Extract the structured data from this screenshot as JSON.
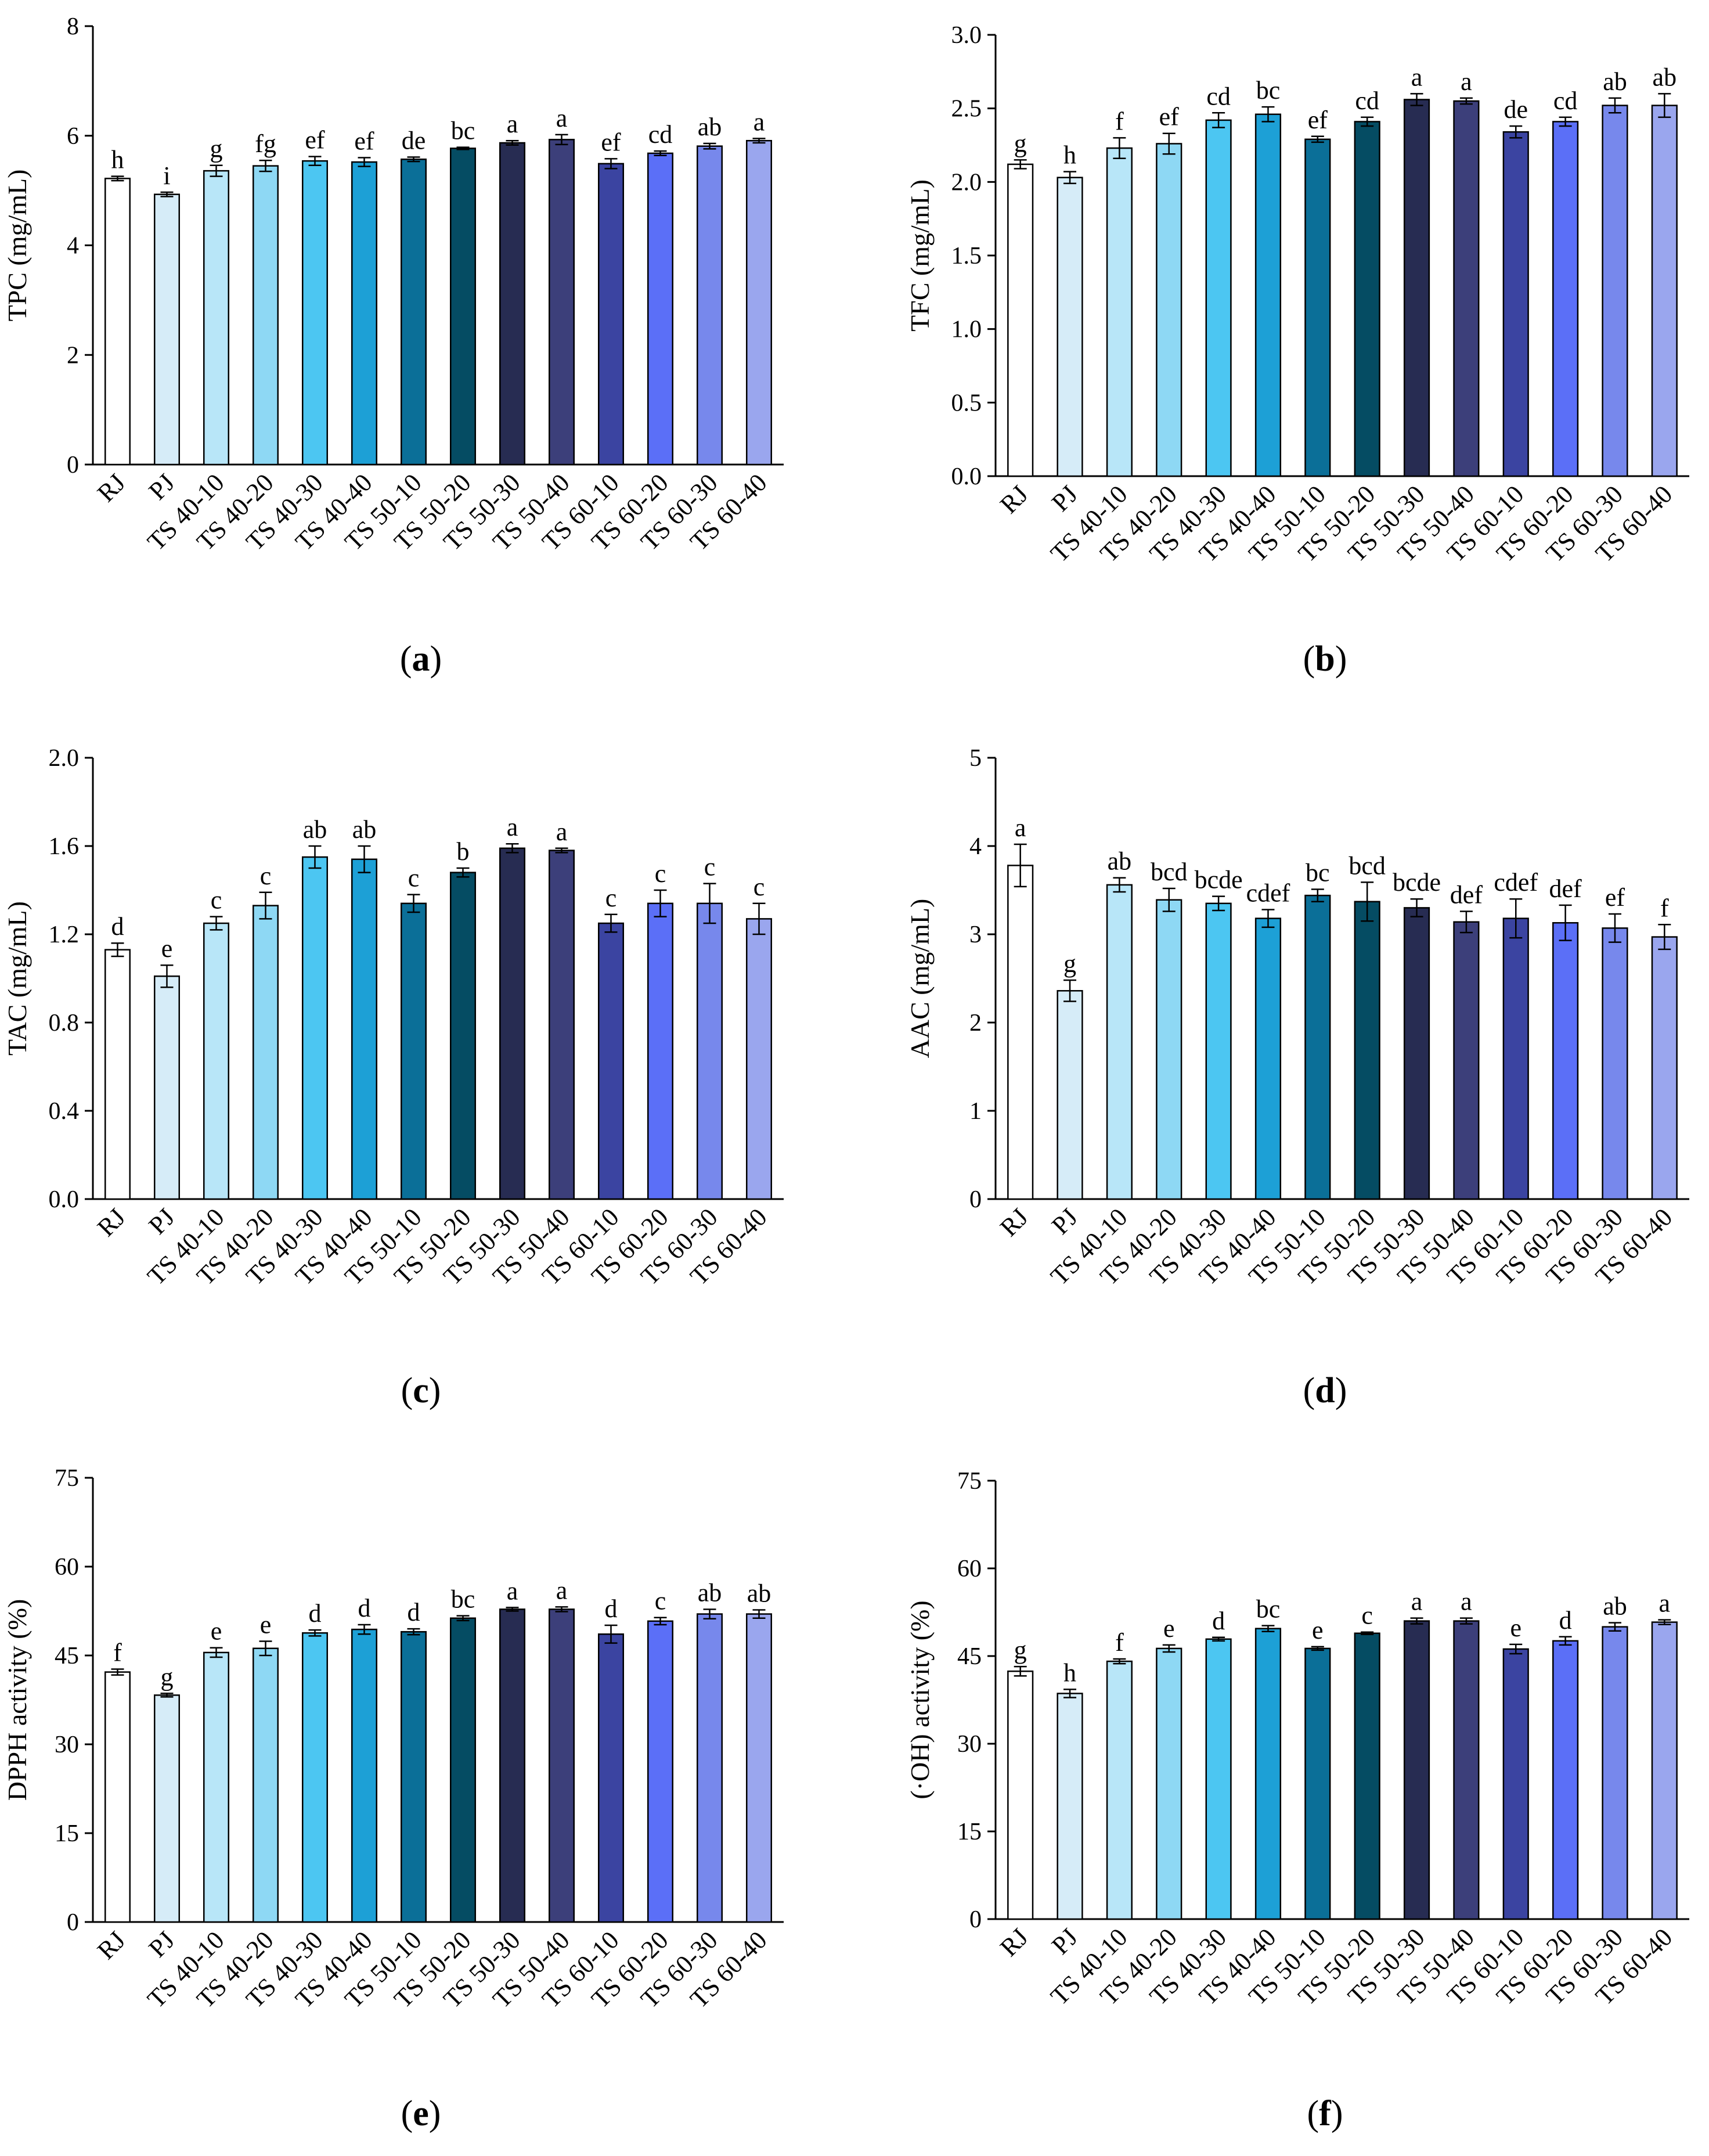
{
  "figure": {
    "colors": [
      "#ffffff",
      "#d6ecf8",
      "#b8e6f8",
      "#8ed8f4",
      "#4cc6f2",
      "#1da0d6",
      "#0b6f98",
      "#054c63",
      "#272c52",
      "#3c3f7a",
      "#3b44a1",
      "#5b6ff7",
      "#7788ec",
      "#9aa6ee"
    ],
    "categories": [
      "RJ",
      "PJ",
      "TS 40-10",
      "TS 40-20",
      "TS 40-30",
      "TS 40-40",
      "TS 50-10",
      "TS 50-20",
      "TS 50-30",
      "TS 50-40",
      "TS 60-10",
      "TS 60-20",
      "TS 60-30",
      "TS 60-40"
    ]
  },
  "chart_data": [
    {
      "type": "bar",
      "panel_label": "a",
      "ylabel": "TPC (mg/mL)",
      "ylim": [
        0,
        8
      ],
      "yticks": [
        0,
        2,
        4,
        6,
        8
      ],
      "ytick_labels": [
        "0",
        "2",
        "4",
        "6",
        "8"
      ],
      "categories": [
        "RJ",
        "PJ",
        "TS 40-10",
        "TS 40-20",
        "TS 40-30",
        "TS 40-40",
        "TS 50-10",
        "TS 50-20",
        "TS 50-30",
        "TS 50-40",
        "TS 60-10",
        "TS 60-20",
        "TS 60-30",
        "TS 60-40"
      ],
      "values": [
        5.22,
        4.93,
        5.36,
        5.45,
        5.54,
        5.52,
        5.57,
        5.77,
        5.87,
        5.93,
        5.49,
        5.68,
        5.81,
        5.91
      ],
      "errors": [
        0.04,
        0.04,
        0.1,
        0.1,
        0.08,
        0.08,
        0.04,
        0.02,
        0.04,
        0.09,
        0.09,
        0.04,
        0.05,
        0.04
      ],
      "letters": [
        "h",
        "i",
        "g",
        "fg",
        "ef",
        "ef",
        "de",
        "bc",
        "a",
        "a",
        "ef",
        "cd",
        "ab",
        "a"
      ]
    },
    {
      "type": "bar",
      "panel_label": "b",
      "ylabel": "TFC (mg/mL)",
      "ylim": [
        0,
        3
      ],
      "yticks": [
        0,
        0.5,
        1,
        1.5,
        2,
        2.5,
        3
      ],
      "ytick_labels": [
        "0.0",
        "0.5",
        "1.0",
        "1.5",
        "2.0",
        "2.5",
        "3.0"
      ],
      "categories": [
        "RJ",
        "PJ",
        "TS 40-10",
        "TS 40-20",
        "TS 40-30",
        "TS 40-40",
        "TS 50-10",
        "TS 50-20",
        "TS 50-30",
        "TS 50-40",
        "TS 60-10",
        "TS 60-20",
        "TS 60-30",
        "TS 60-40"
      ],
      "values": [
        2.12,
        2.03,
        2.23,
        2.26,
        2.42,
        2.46,
        2.29,
        2.41,
        2.56,
        2.55,
        2.34,
        2.41,
        2.52,
        2.52
      ],
      "errors": [
        0.03,
        0.04,
        0.07,
        0.07,
        0.05,
        0.05,
        0.02,
        0.03,
        0.04,
        0.02,
        0.04,
        0.03,
        0.05,
        0.08
      ],
      "letters": [
        "g",
        "h",
        "f",
        "ef",
        "cd",
        "bc",
        "ef",
        "cd",
        "a",
        "a",
        "de",
        "cd",
        "ab",
        "ab"
      ]
    },
    {
      "type": "bar",
      "panel_label": "c",
      "ylabel": "TAC (mg/mL)",
      "ylim": [
        0,
        2
      ],
      "yticks": [
        0,
        0.4,
        0.8,
        1.2,
        1.6,
        2.0
      ],
      "ytick_labels": [
        "0.0",
        "0.4",
        "0.8",
        "1.2",
        "1.6",
        "2.0"
      ],
      "categories": [
        "RJ",
        "PJ",
        "TS 40-10",
        "TS 40-20",
        "TS 40-30",
        "TS 40-40",
        "TS 50-10",
        "TS 50-20",
        "TS 50-30",
        "TS 50-40",
        "TS 60-10",
        "TS 60-20",
        "TS 60-30",
        "TS 60-40"
      ],
      "values": [
        1.13,
        1.01,
        1.25,
        1.33,
        1.55,
        1.54,
        1.34,
        1.48,
        1.59,
        1.58,
        1.25,
        1.34,
        1.34,
        1.27
      ],
      "errors": [
        0.03,
        0.05,
        0.03,
        0.06,
        0.05,
        0.06,
        0.04,
        0.02,
        0.02,
        0.01,
        0.04,
        0.06,
        0.09,
        0.07
      ],
      "letters": [
        "d",
        "e",
        "c",
        "c",
        "ab",
        "ab",
        "c",
        "b",
        "a",
        "a",
        "c",
        "c",
        "c",
        "c"
      ]
    },
    {
      "type": "bar",
      "panel_label": "d",
      "ylabel": "AAC (mg/mL)",
      "ylim": [
        0,
        5
      ],
      "yticks": [
        0,
        1,
        2,
        3,
        4,
        5
      ],
      "ytick_labels": [
        "0",
        "1",
        "2",
        "3",
        "4",
        "5"
      ],
      "categories": [
        "RJ",
        "PJ",
        "TS 40-10",
        "TS 40-20",
        "TS 40-30",
        "TS 40-40",
        "TS 50-10",
        "TS 50-20",
        "TS 50-30",
        "TS 50-40",
        "TS 60-10",
        "TS 60-20",
        "TS 60-30",
        "TS 60-40"
      ],
      "values": [
        3.78,
        2.36,
        3.56,
        3.39,
        3.35,
        3.18,
        3.44,
        3.37,
        3.3,
        3.14,
        3.18,
        3.13,
        3.07,
        2.97
      ],
      "errors": [
        0.24,
        0.12,
        0.08,
        0.13,
        0.08,
        0.1,
        0.07,
        0.22,
        0.1,
        0.12,
        0.22,
        0.2,
        0.16,
        0.14
      ],
      "letters": [
        "a",
        "g",
        "ab",
        "bcd",
        "bcde",
        "cdef",
        "bc",
        "bcd",
        "bcde",
        "def",
        "cdef",
        "def",
        "ef",
        "f"
      ]
    },
    {
      "type": "bar",
      "panel_label": "e",
      "ylabel": "DPPH activity (%)",
      "ylim": [
        0,
        75
      ],
      "yticks": [
        0,
        15,
        30,
        45,
        60,
        75
      ],
      "ytick_labels": [
        "0",
        "15",
        "30",
        "45",
        "60",
        "75"
      ],
      "categories": [
        "RJ",
        "PJ",
        "TS 40-10",
        "TS 40-20",
        "TS 40-30",
        "TS 40-40",
        "TS 50-10",
        "TS 50-20",
        "TS 50-30",
        "TS 50-40",
        "TS 60-10",
        "TS 60-20",
        "TS 60-30",
        "TS 60-40"
      ],
      "values": [
        42.2,
        38.3,
        45.5,
        46.2,
        48.8,
        49.4,
        49.0,
        51.3,
        52.8,
        52.8,
        48.6,
        50.8,
        52.0,
        52.0
      ],
      "errors": [
        0.5,
        0.3,
        0.8,
        1.2,
        0.5,
        0.8,
        0.5,
        0.4,
        0.3,
        0.4,
        1.5,
        0.6,
        0.8,
        0.7
      ],
      "letters": [
        "f",
        "g",
        "e",
        "e",
        "d",
        "d",
        "d",
        "bc",
        "a",
        "a",
        "d",
        "c",
        "ab",
        "ab"
      ]
    },
    {
      "type": "bar",
      "panel_label": "f",
      "ylabel": "(·OH) activity (%)",
      "ylim": [
        0,
        75
      ],
      "yticks": [
        0,
        15,
        30,
        45,
        60,
        75
      ],
      "ytick_labels": [
        "0",
        "15",
        "30",
        "45",
        "60",
        "75"
      ],
      "categories": [
        "RJ",
        "PJ",
        "TS 40-10",
        "TS 40-20",
        "TS 40-30",
        "TS 40-40",
        "TS 50-10",
        "TS 50-20",
        "TS 50-30",
        "TS 50-40",
        "TS 60-10",
        "TS 60-20",
        "TS 60-30",
        "TS 60-40"
      ],
      "values": [
        42.4,
        38.6,
        44.1,
        46.3,
        47.9,
        49.7,
        46.3,
        48.9,
        51.0,
        51.0,
        46.2,
        47.6,
        50.0,
        50.8
      ],
      "errors": [
        0.8,
        0.7,
        0.4,
        0.6,
        0.3,
        0.5,
        0.3,
        0.2,
        0.5,
        0.5,
        0.8,
        0.7,
        0.7,
        0.4
      ],
      "letters": [
        "g",
        "h",
        "f",
        "e",
        "d",
        "bc",
        "e",
        "c",
        "a",
        "a",
        "e",
        "d",
        "ab",
        "a"
      ]
    }
  ]
}
